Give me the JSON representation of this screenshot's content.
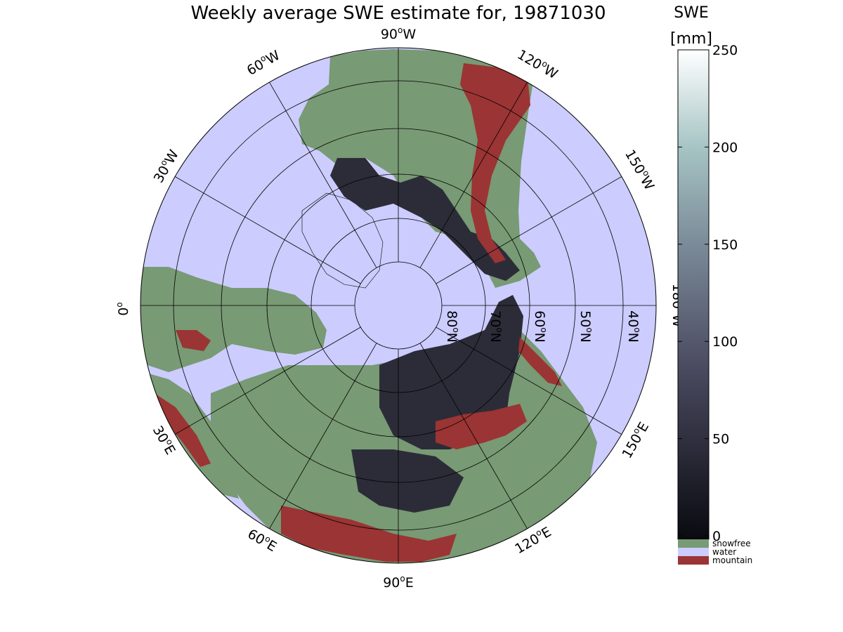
{
  "title": "Weekly average SWE estimate for, 19871030",
  "colorbar": {
    "title_line1": "SWE",
    "title_line2": "[mm]",
    "ticks": [
      "0",
      "50",
      "100",
      "150",
      "200",
      "250"
    ],
    "categories": [
      {
        "label": "snowfree",
        "color": "#789a74"
      },
      {
        "label": "water",
        "color": "#ccccff"
      },
      {
        "label": "mountain",
        "color": "#9b3434"
      }
    ],
    "gradient_low": "#0a0a10",
    "gradient_mid": "#5c6480",
    "gradient_high": "#ffffff"
  },
  "map": {
    "projection": "north-polar-stereographic",
    "water_color": "#ccccff",
    "land_color": "#789a74",
    "mountain_color": "#9b3434",
    "snow_dark_color": "#2c2c38",
    "meridian_labels": {
      "lon_90W": "90",
      "lon_60W": "60",
      "lon_30W": "30",
      "lon_0": "0",
      "lon_30E": "30",
      "lon_60E": "60",
      "lon_90E": "90",
      "lon_120E": "120",
      "lon_150E": "150",
      "lon_180W": "180",
      "lon_150W": "150",
      "lon_120W": "120"
    },
    "lat_labels": [
      "80",
      "70",
      "60",
      "50",
      "40"
    ],
    "degree_sign": "o",
    "dir_W": "W",
    "dir_E": "E",
    "dir_N": "N"
  }
}
